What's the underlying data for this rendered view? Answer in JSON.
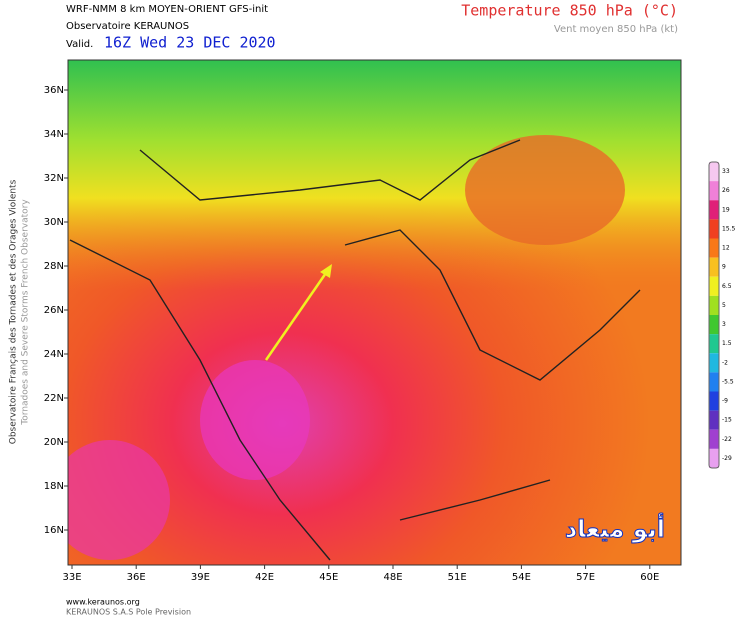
{
  "header": {
    "model": "WRF-NMM 8 km MOYEN-ORIENT GFS-init",
    "source": "Observatoire KERAUNOS",
    "valid_label": "Valid.",
    "valid_time": "16Z Wed 23 DEC 2020",
    "title": "Temperature 850 hPa (°C)",
    "subtitle": "Vent moyen 850 hPa (kt)"
  },
  "side_text": {
    "line1": "Observatoire Français des Tornades et des Orages Violents",
    "line2": "Tornadoes and Severe Storms French Observatory"
  },
  "map": {
    "lat_labels": [
      "36N",
      "34N",
      "32N",
      "30N",
      "28N",
      "26N",
      "24N",
      "22N",
      "20N",
      "18N",
      "16N"
    ],
    "lon_labels": [
      "33E",
      "36E",
      "39E",
      "42E",
      "45E",
      "48E",
      "51E",
      "54E",
      "57E",
      "60E"
    ],
    "watermark": "أبو ميعاد"
  },
  "colorbar": {
    "ticks": [
      33,
      26,
      19,
      15.5,
      12,
      9,
      6.5,
      5,
      3,
      1.5,
      -2,
      -5.5,
      -9,
      -15,
      -22,
      -29
    ],
    "colors": [
      "#f6c8f0",
      "#f080d8",
      "#e02078",
      "#f04020",
      "#f87818",
      "#f8c020",
      "#f0f020",
      "#a0e020",
      "#40c830",
      "#20c890",
      "#20b8e0",
      "#2080f0",
      "#2040e0",
      "#6030c0",
      "#a040d0",
      "#e8a0f0"
    ]
  },
  "footer": {
    "url": "www.keraunos.org",
    "company": "KERAUNOS S.A.S Pole Prevision"
  }
}
